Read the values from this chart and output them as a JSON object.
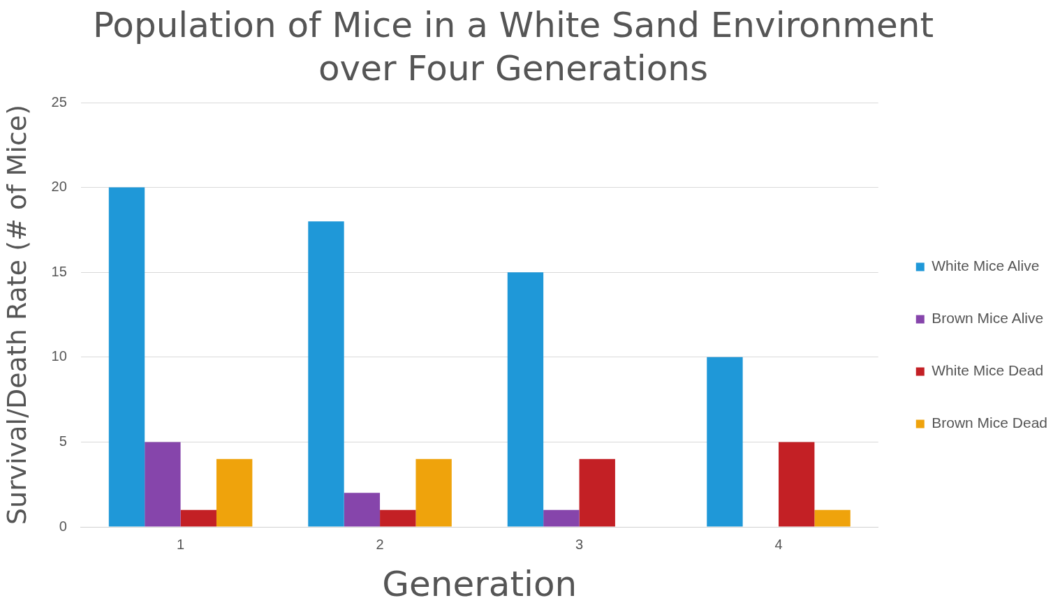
{
  "chart_data": {
    "type": "bar",
    "title": "Population of Mice in a White Sand Environment over Four Generations",
    "xlabel": "Generation",
    "ylabel": "Survival/Death Rate (# of Mice)",
    "categories": [
      "1",
      "2",
      "3",
      "4"
    ],
    "series": [
      {
        "name": "White Mice Alive",
        "color": "#1f98d8",
        "values": [
          20,
          18,
          15,
          10
        ]
      },
      {
        "name": "Brown Mice Alive",
        "color": "#8645ab",
        "values": [
          5,
          2,
          1,
          0
        ]
      },
      {
        "name": "White Mice Dead",
        "color": "#c32025",
        "values": [
          1,
          1,
          4,
          5
        ]
      },
      {
        "name": "Brown Mice Dead",
        "color": "#efa30c",
        "values": [
          4,
          4,
          0,
          1
        ]
      }
    ],
    "ylim": [
      0,
      25
    ],
    "yticks": [
      0,
      5,
      10,
      15,
      20,
      25
    ],
    "grid": "y",
    "legend": "right"
  }
}
